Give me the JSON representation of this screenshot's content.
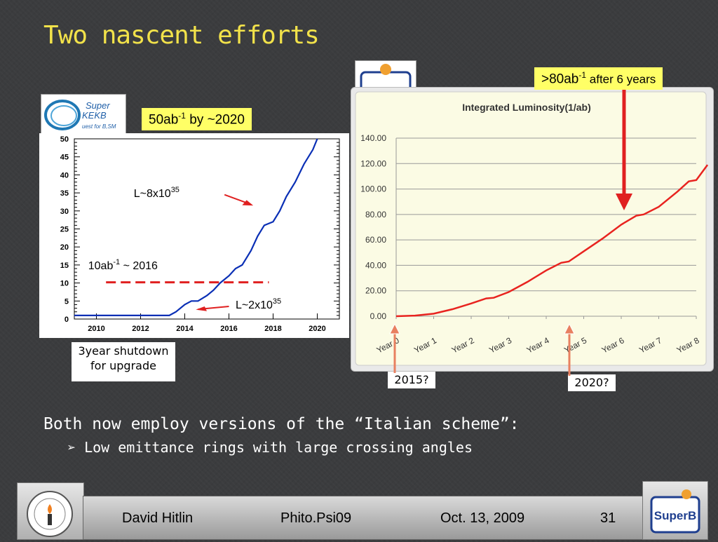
{
  "slide": {
    "title": "Two nascent efforts",
    "label_superb": ">80ab",
    "label_superb_sup": "-1",
    "label_superb_rest": " after 6 years",
    "label_superkekb": "50ab",
    "label_superkekb_sup": "-1",
    "label_superkekb_rest": " by ~2020",
    "note_shutdown": "3year shutdown for upgrade",
    "note_2015": "2015?",
    "note_2020": "2020?",
    "scheme_line": "Both now employ versions of the “Italian scheme”:",
    "bullet_1": "Low emittance rings with large crossing angles",
    "kekb_logo_text_1": "Super",
    "kekb_logo_text_2": "KEKB",
    "kekb_logo_text_3": "uest for B,SM",
    "superb_logo_text": "SuperB"
  },
  "footer": {
    "author": "David Hitlin",
    "conference": "Phito.Psi09",
    "date": "Oct. 13, 2009",
    "page": "31"
  },
  "colors": {
    "title": "#f2e24a",
    "highlight": "#ffff66",
    "kekb_line": "#0a2fb5",
    "superb_line": "#e8231f",
    "plot_bg": "#fbfbe4",
    "arrow": "#e02020"
  },
  "chart_data": [
    {
      "type": "line",
      "title": "",
      "xlabel": "",
      "ylabel": "",
      "xlim": [
        2009,
        2021
      ],
      "ylim": [
        0,
        50
      ],
      "x_ticks": [
        2010,
        2012,
        2014,
        2016,
        2018,
        2020
      ],
      "y_ticks": [
        0,
        5,
        10,
        15,
        20,
        25,
        30,
        35,
        40,
        45,
        50
      ],
      "series": [
        {
          "x": [
            2009,
            2013.3,
            2013.6,
            2014.0,
            2014.3,
            2014.6,
            2015.0,
            2015.3,
            2015.6,
            2016.0,
            2016.3,
            2016.6,
            2017.0,
            2017.3,
            2017.6,
            2018.0,
            2018.3,
            2018.6,
            2019.0,
            2019.4,
            2019.8,
            2020.0
          ],
          "y": [
            1,
            1,
            2,
            4,
            5,
            5,
            6.5,
            8,
            10,
            12,
            14,
            15,
            19,
            23,
            26,
            27,
            30,
            34,
            38,
            43,
            47,
            50
          ]
        }
      ],
      "annotations": [
        {
          "text": "L~8x10",
          "sup": "35"
        },
        {
          "text": "10ab",
          "sup": "-1",
          "rest": " ~ 2016"
        },
        {
          "text": "L~2x10",
          "sup": "35"
        }
      ]
    },
    {
      "type": "line",
      "title": "Integrated Luminosity(1/ab)",
      "xlabel": "",
      "ylabel": "",
      "ylim": [
        0,
        140
      ],
      "y_ticks": [
        "0.00",
        "20.00",
        "40.00",
        "60.00",
        "80.00",
        "100.00",
        "120.00",
        "140.00"
      ],
      "categories": [
        "Year 0",
        "Year 1",
        "Year 2",
        "Year 3",
        "Year 4",
        "Year 5",
        "Year 6",
        "Year 7",
        "Year 8"
      ],
      "series": [
        {
          "x": [
            0,
            0.5,
            1.0,
            1.5,
            2.0,
            2.4,
            2.6,
            3.0,
            3.5,
            4.0,
            4.4,
            4.6,
            5.0,
            5.5,
            6.0,
            6.4,
            6.6,
            7.0,
            7.5,
            7.8,
            8.0,
            8.3
          ],
          "y": [
            0,
            0.5,
            2,
            5.5,
            10,
            14,
            14.5,
            19,
            27,
            36,
            42,
            43,
            51,
            61,
            72,
            79,
            80,
            86,
            98,
            106,
            107,
            119
          ]
        }
      ]
    }
  ]
}
